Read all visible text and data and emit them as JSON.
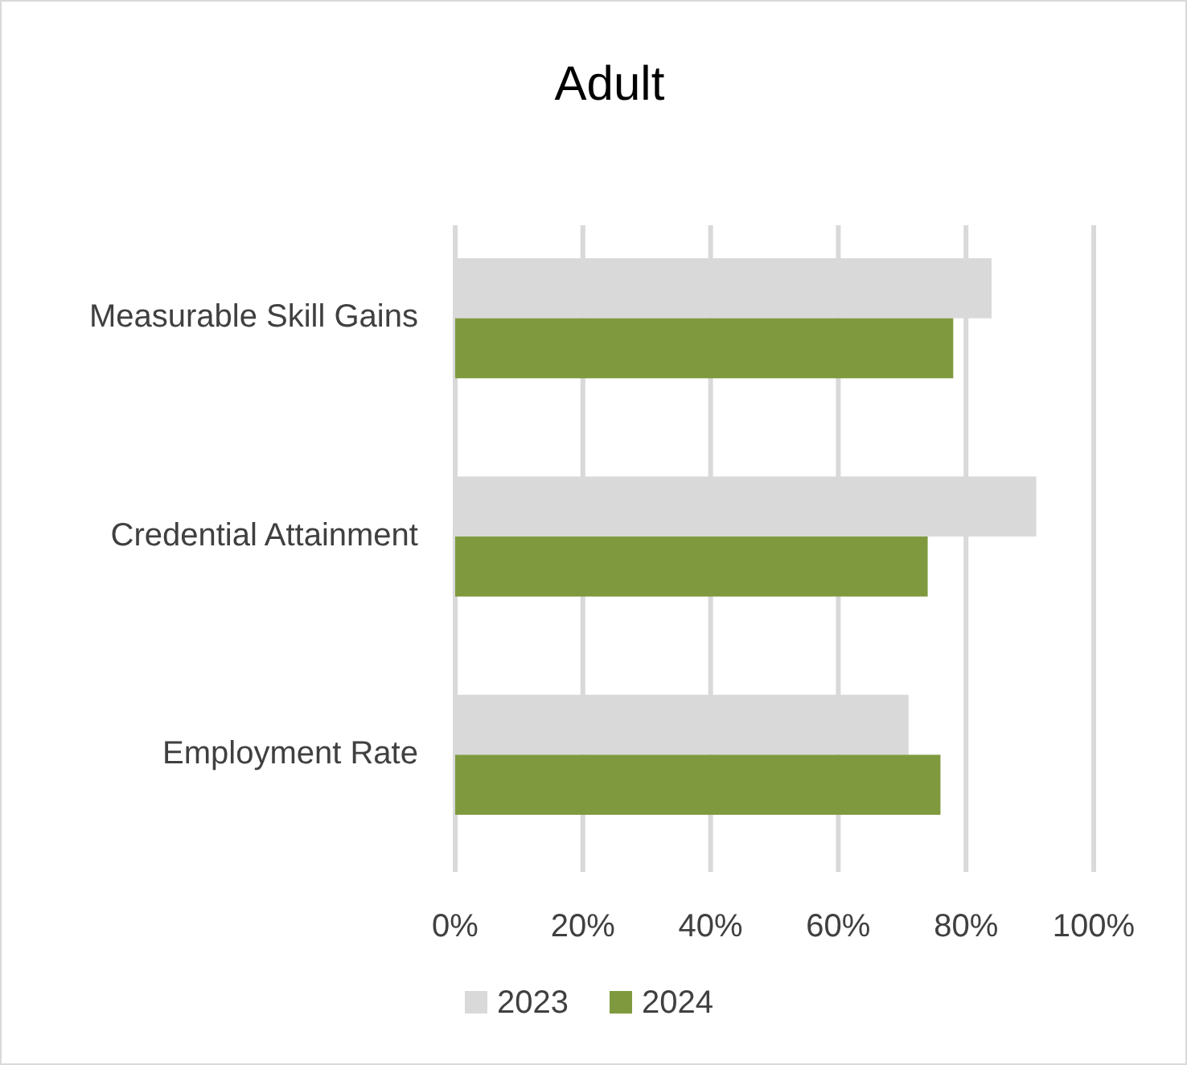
{
  "chart_data": {
    "type": "bar",
    "orientation": "horizontal",
    "title": "Adult",
    "categories": [
      "Measurable Skill Gains",
      "Credential Attainment",
      "Employment Rate"
    ],
    "series": [
      {
        "name": "2023",
        "color": "#d9d9d9",
        "values": [
          84,
          91,
          71
        ]
      },
      {
        "name": "2024",
        "color": "#7f9a3e",
        "values": [
          78,
          74,
          76
        ]
      }
    ],
    "xlim": [
      0,
      100
    ],
    "xticks": [
      {
        "value": 0,
        "label": "0%"
      },
      {
        "value": 20,
        "label": "20%"
      },
      {
        "value": 40,
        "label": "40%"
      },
      {
        "value": 60,
        "label": "60%"
      },
      {
        "value": 80,
        "label": "80%"
      },
      {
        "value": 100,
        "label": "100%"
      }
    ],
    "grid": "x",
    "legend": "bottom"
  }
}
